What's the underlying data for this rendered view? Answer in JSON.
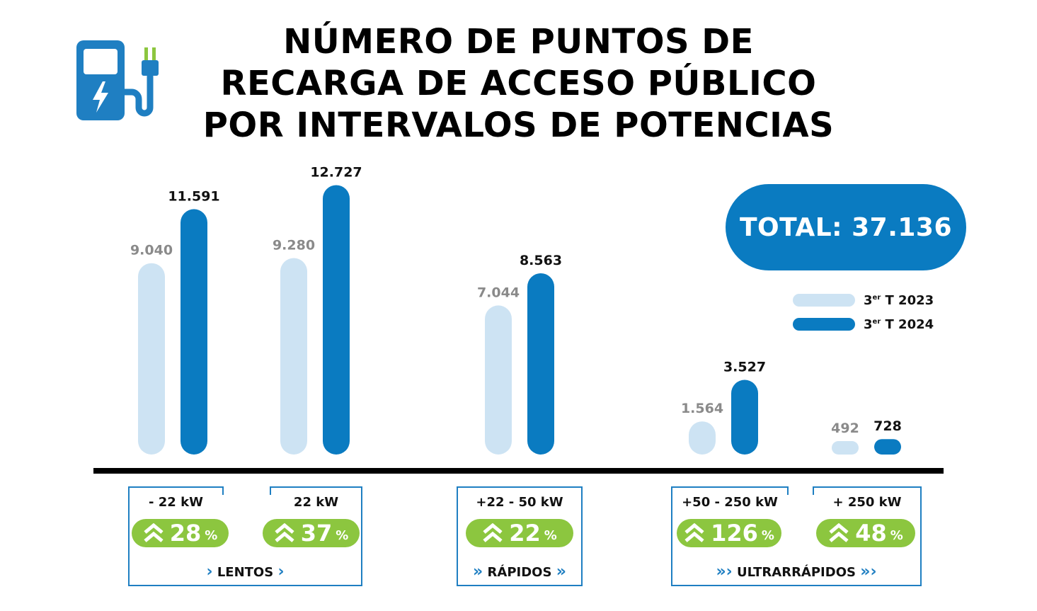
{
  "title_lines": [
    "NÚMERO DE PUNTOS DE",
    "RECARGA DE ACCESO PÚBLICO",
    "POR INTERVALOS DE POTENCIAS"
  ],
  "total_label": "TOTAL: 37.136",
  "colors": {
    "series_2023": "#cde3f3",
    "series_2024": "#0a7bc1",
    "growth": "#8cc63f",
    "box": "#1f7fc2"
  },
  "icons": {
    "charger": "ev-charger-icon",
    "growth": "double-chevron-up-icon"
  },
  "legend": {
    "items": [
      {
        "label_main": "3",
        "label_sup": "er",
        "label_rest": " T 2023"
      },
      {
        "label_main": "3",
        "label_sup": "er",
        "label_rest": " T 2024"
      }
    ]
  },
  "chart_data": {
    "type": "bar",
    "categories": [
      "- 22 kW",
      "22 kW",
      "+22 - 50 kW",
      "+50 - 250 kW",
      "+ 250 kW"
    ],
    "series": [
      {
        "name": "3er T 2023",
        "values": [
          9040,
          9280,
          7044,
          1564,
          492
        ],
        "labels": [
          "9.040",
          "9.280",
          "7.044",
          "1.564",
          "492"
        ]
      },
      {
        "name": "3er T 2024",
        "values": [
          11591,
          12727,
          8563,
          3527,
          728
        ],
        "labels": [
          "11.591",
          "12.727",
          "8.563",
          "3.527",
          "728"
        ]
      }
    ],
    "growth_pct": [
      "28",
      "37",
      "22",
      "126",
      "48"
    ],
    "pct_symbol": "%",
    "groups": [
      {
        "label": "LENTOS"
      },
      {
        "label": "RÁPIDOS"
      },
      {
        "label": "ULTRARRÁPIDOS"
      }
    ]
  }
}
